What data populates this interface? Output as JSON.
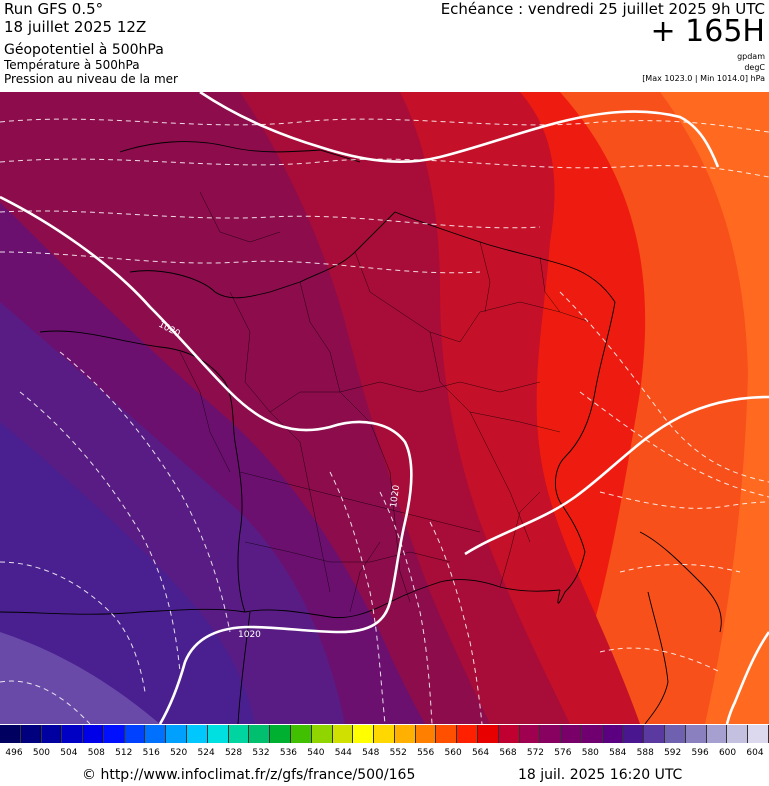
{
  "header": {
    "run": "Run GFS 0.5°",
    "date": "18 juillet 2025 12Z",
    "layer1": "Géopotentiel à 500hPa",
    "layer2": "Température à 500hPa",
    "layer3": "Pression au niveau de la mer",
    "echeance": "Echéance : vendredi 25 juillet 2025 9h UTC",
    "lead": "+ 165H",
    "unit_geo": "gpdam",
    "unit_temp": "degC",
    "range": "[Max 1023.0 | Min 1014.0] hPa"
  },
  "isobar_labels": [
    "1020",
    "1020",
    "1020"
  ],
  "colorbar": {
    "ticks": [
      "496",
      "500",
      "504",
      "508",
      "512",
      "516",
      "520",
      "524",
      "528",
      "532",
      "536",
      "540",
      "544",
      "548",
      "552",
      "556",
      "560",
      "564",
      "568",
      "572",
      "576",
      "580",
      "584",
      "588",
      "592",
      "596",
      "600",
      "604"
    ],
    "colors": [
      "#000060",
      "#00007f",
      "#0000a0",
      "#0000c4",
      "#0000e8",
      "#0010ff",
      "#0040ff",
      "#0070ff",
      "#00a0ff",
      "#00c8ff",
      "#00e0e0",
      "#00d4a0",
      "#00c070",
      "#00b030",
      "#40c000",
      "#90d400",
      "#d0e000",
      "#ffff00",
      "#ffd800",
      "#ffb000",
      "#ff8000",
      "#ff5000",
      "#ff2000",
      "#e80000",
      "#c00030",
      "#a00050",
      "#880060",
      "#780068",
      "#700070",
      "#5a0080",
      "#4a1690",
      "#5a3aa0",
      "#7060b0",
      "#8a80c0",
      "#a6a0d0",
      "#c4c0e0",
      "#dcd8ee"
    ]
  },
  "footer": {
    "credit": "© http://www.infoclimat.fr/z/gfs/france/500/165",
    "stamp": "18 juil. 2025 16:20 UTC"
  }
}
